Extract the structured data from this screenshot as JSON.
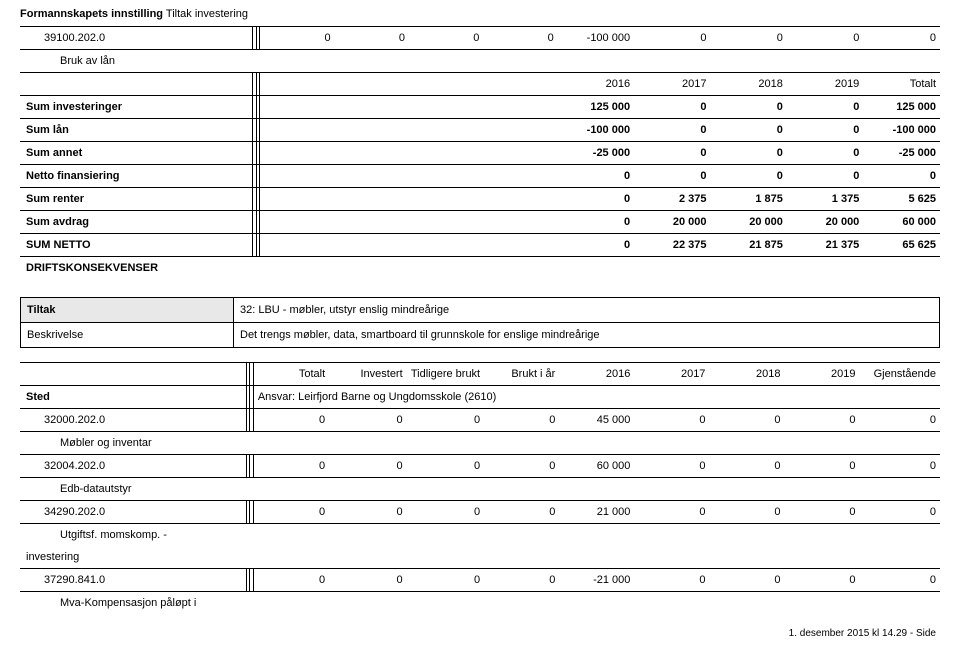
{
  "header": {
    "bold": "Formannskapets innstilling",
    "rest": " Tiltak investering"
  },
  "table1": {
    "rows": [
      {
        "label": "39100.202.0",
        "indent": 1,
        "values": [
          "0",
          "0",
          "0",
          "0",
          "-100 000",
          "0",
          "0",
          "0",
          "0"
        ],
        "bold": false,
        "underlabel": "Bruk av lån"
      },
      {
        "label": "",
        "indent": 0,
        "values": [
          "",
          "",
          "",
          "",
          "2016",
          "2017",
          "2018",
          "2019",
          "Totalt"
        ],
        "bold": false,
        "header": true
      },
      {
        "label": "Sum investeringer",
        "indent": 0,
        "values": [
          "",
          "",
          "",
          "",
          "125 000",
          "0",
          "0",
          "0",
          "125 000"
        ],
        "bold": true
      },
      {
        "label": "Sum lån",
        "indent": 0,
        "values": [
          "",
          "",
          "",
          "",
          "-100 000",
          "0",
          "0",
          "0",
          "-100 000"
        ],
        "bold": true
      },
      {
        "label": "Sum annet",
        "indent": 0,
        "values": [
          "",
          "",
          "",
          "",
          "-25 000",
          "0",
          "0",
          "0",
          "-25 000"
        ],
        "bold": true
      },
      {
        "label": "Netto finansiering",
        "indent": 0,
        "values": [
          "",
          "",
          "",
          "",
          "0",
          "0",
          "0",
          "0",
          "0"
        ],
        "bold": true
      },
      {
        "label": "Sum renter",
        "indent": 0,
        "values": [
          "",
          "",
          "",
          "",
          "0",
          "2 375",
          "1 875",
          "1 375",
          "5 625"
        ],
        "bold": true
      },
      {
        "label": "Sum avdrag",
        "indent": 0,
        "values": [
          "",
          "",
          "",
          "",
          "0",
          "20 000",
          "20 000",
          "20 000",
          "60 000"
        ],
        "bold": true
      },
      {
        "label": "SUM NETTO",
        "indent": 0,
        "values": [
          "",
          "",
          "",
          "",
          "0",
          "22 375",
          "21 875",
          "21 375",
          "65 625"
        ],
        "bold": true
      },
      {
        "label": "DRIFTSKONSEKVENSER",
        "indent": 0,
        "values": [
          "",
          "",
          "",
          "",
          "",
          "",
          "",
          "",
          ""
        ],
        "bold": true,
        "noborder": true
      }
    ]
  },
  "tiltak": {
    "row1_label": "Tiltak",
    "row1_value": "32: LBU - møbler, utstyr enslig mindreårige",
    "row2_label": "Beskrivelse",
    "row2_value": "Det trengs møbler, data, smartboard til grunnskole for enslige mindreårige"
  },
  "table2": {
    "header": [
      "",
      "Totalt",
      "Investert",
      "Tidligere brukt",
      "Brukt i år",
      "2016",
      "2017",
      "2018",
      "2019",
      "Gjenstående"
    ],
    "sted_label": "Sted",
    "sted_value": "Ansvar: Leirfjord Barne og Ungdomsskole (2610)",
    "rows": [
      {
        "label": "32000.202.0",
        "values": [
          "0",
          "0",
          "0",
          "0",
          "45 000",
          "0",
          "0",
          "0",
          "0"
        ],
        "underlabel": "Møbler og inventar"
      },
      {
        "label": "32004.202.0",
        "values": [
          "0",
          "0",
          "0",
          "0",
          "60 000",
          "0",
          "0",
          "0",
          "0"
        ],
        "underlabel": "Edb-datautstyr"
      },
      {
        "label": "34290.202.0",
        "values": [
          "0",
          "0",
          "0",
          "0",
          "21 000",
          "0",
          "0",
          "0",
          "0"
        ],
        "underlabel": "Utgiftsf. momskomp. -",
        "underlabel2": "investering"
      },
      {
        "label": "37290.841.0",
        "values": [
          "0",
          "0",
          "0",
          "0",
          "-21 000",
          "0",
          "0",
          "0",
          "0"
        ],
        "underlabel": "Mva-Kompensasjon påløpt i"
      }
    ]
  },
  "footer": "1. desember 2015 kl 14.29 - Side"
}
